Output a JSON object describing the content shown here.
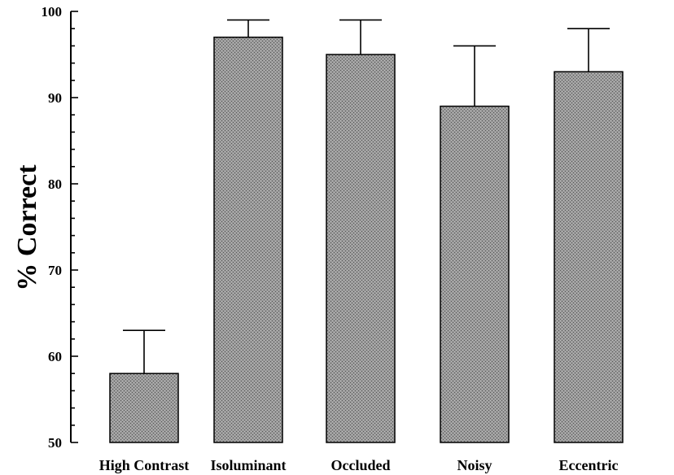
{
  "chart_data": {
    "type": "bar",
    "ylabel": "% Correct",
    "xlabel": "",
    "title": "",
    "categories": [
      "High Contrast",
      "Isoluminant",
      "Occluded",
      "Noisy",
      "Eccentric"
    ],
    "values": [
      58,
      97,
      95,
      89,
      93
    ],
    "error_upper": [
      63,
      99,
      99,
      96,
      98
    ],
    "ylim": [
      50,
      100
    ],
    "yticks": [
      50,
      60,
      70,
      80,
      90,
      100
    ],
    "grid": false,
    "legend": "none",
    "bar_color": "#8c8c8c",
    "bar_edge_color": "#000000"
  }
}
